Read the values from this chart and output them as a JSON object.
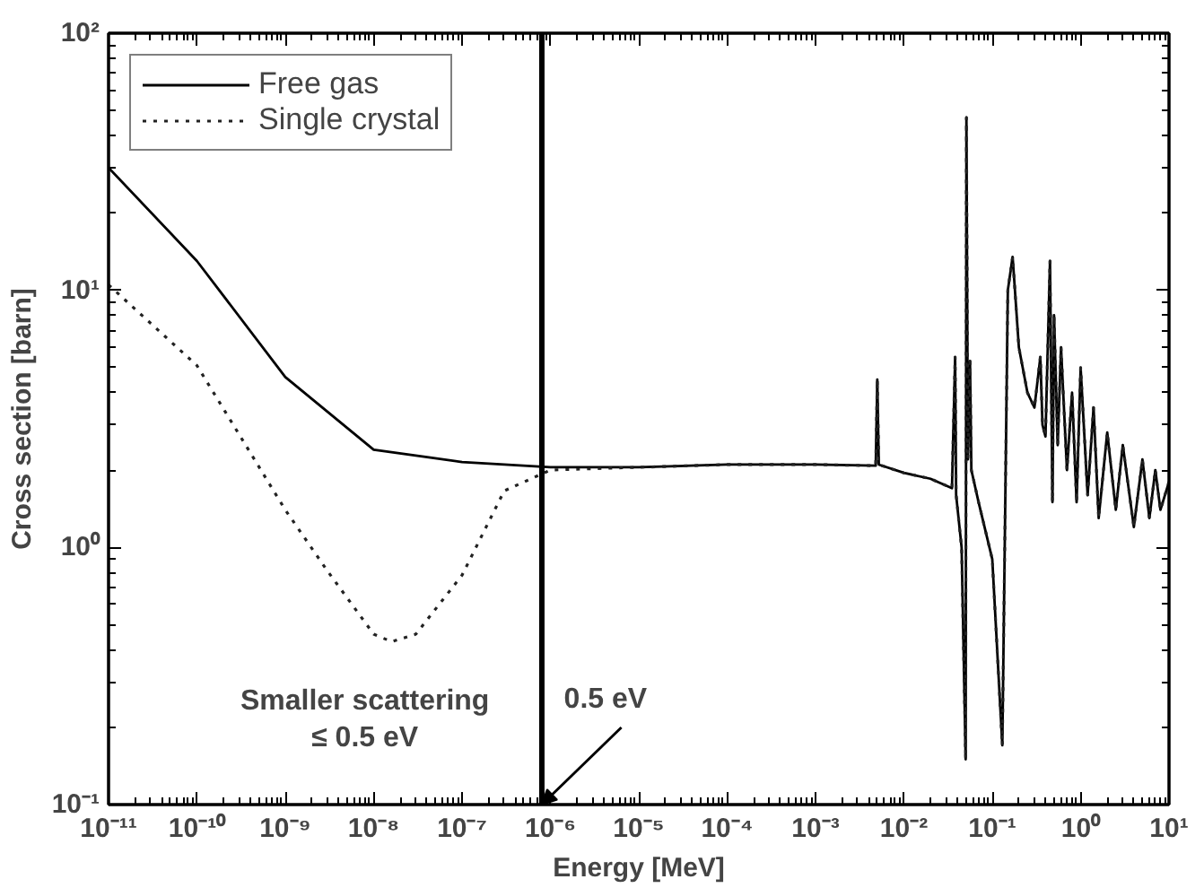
{
  "chart_data": {
    "type": "line",
    "xlabel": "Energy [MeV]",
    "ylabel": "Cross section [barn]",
    "log": "xy",
    "legend": "top left",
    "grid": false,
    "xlim": [
      1e-11,
      10
    ],
    "ylim": [
      0.1,
      100
    ],
    "xticks": [
      {
        "value": 1e-11,
        "label": "10⁻¹¹"
      },
      {
        "value": 1e-10,
        "label": "10⁻¹⁰"
      },
      {
        "value": 1e-09,
        "label": "10⁻⁹"
      },
      {
        "value": 1e-08,
        "label": "10⁻⁸"
      },
      {
        "value": 1e-07,
        "label": "10⁻⁷"
      },
      {
        "value": 1e-06,
        "label": "10⁻⁶"
      },
      {
        "value": 1e-05,
        "label": "10⁻⁵"
      },
      {
        "value": 0.0001,
        "label": "10⁻⁴"
      },
      {
        "value": 0.001,
        "label": "10⁻³"
      },
      {
        "value": 0.01,
        "label": "10⁻²"
      },
      {
        "value": 0.1,
        "label": "10⁻¹"
      },
      {
        "value": 1,
        "label": "10⁰"
      },
      {
        "value": 10,
        "label": "10¹"
      }
    ],
    "yticks": [
      {
        "value": 0.1,
        "label": "10⁻¹"
      },
      {
        "value": 1,
        "label": "10⁰"
      },
      {
        "value": 10,
        "label": "10¹"
      },
      {
        "value": 100,
        "label": "10²"
      }
    ],
    "series": [
      {
        "name": "Free gas",
        "color": "#000000",
        "line_style": "solid",
        "x": [
          1e-11,
          1e-10,
          1e-09,
          1e-08,
          1e-07,
          1e-06,
          1e-05,
          0.0001,
          0.001,
          0.0048,
          0.005,
          0.0052,
          0.01,
          0.02,
          0.035,
          0.038,
          0.039,
          0.045,
          0.05,
          0.051,
          0.053,
          0.056,
          0.058,
          0.07,
          0.1,
          0.13,
          0.15,
          0.17,
          0.2,
          0.25,
          0.3,
          0.35,
          0.37,
          0.4,
          0.45,
          0.48,
          0.5,
          0.55,
          0.6,
          0.7,
          0.8,
          0.9,
          1,
          1.2,
          1.4,
          1.6,
          2,
          2.5,
          3,
          4,
          5,
          6,
          7,
          8,
          10
        ],
        "values": [
          30,
          13,
          4.6,
          2.4,
          2.15,
          2.05,
          2.05,
          2.1,
          2.1,
          2.08,
          4.5,
          2.1,
          1.95,
          1.85,
          1.7,
          5.5,
          1.6,
          1.0,
          0.15,
          47,
          2.2,
          5.3,
          2.0,
          1.5,
          0.9,
          0.17,
          10,
          13.5,
          6,
          4,
          3.5,
          5.5,
          3,
          2.7,
          13,
          1.5,
          8,
          2.5,
          6,
          2,
          4,
          1.5,
          5,
          1.6,
          3.5,
          1.3,
          2.8,
          1.4,
          2.5,
          1.2,
          2.2,
          1.3,
          2,
          1.4,
          1.8
        ]
      },
      {
        "name": "Single crystal",
        "color": "#222222",
        "line_style": "dotted",
        "x": [
          1e-11,
          1e-10,
          1e-09,
          3e-09,
          1e-08,
          1.6e-08,
          3e-08,
          1e-07,
          3e-07,
          1e-06,
          1e-05,
          0.0001,
          0.001,
          0.0048,
          0.005,
          0.0052,
          0.01,
          0.02,
          0.035,
          0.038,
          0.039,
          0.045,
          0.05,
          0.051,
          0.053,
          0.056,
          0.058,
          0.07,
          0.1,
          0.13,
          0.15,
          0.17,
          0.2,
          0.25,
          0.3,
          0.35,
          0.37,
          0.4,
          0.45,
          0.48,
          0.5,
          0.55,
          0.6,
          0.7,
          0.8,
          0.9,
          1,
          1.2,
          1.4,
          1.6,
          2,
          2.5,
          3,
          4,
          5,
          6,
          7,
          8,
          10
        ],
        "values": [
          10.5,
          5.1,
          1.4,
          0.81,
          0.46,
          0.43,
          0.46,
          0.78,
          1.66,
          2.0,
          2.05,
          2.1,
          2.1,
          2.08,
          4.5,
          2.1,
          1.95,
          1.85,
          1.7,
          5.5,
          1.6,
          1.0,
          0.15,
          47,
          2.2,
          5.3,
          2.0,
          1.5,
          0.9,
          0.17,
          10,
          13.5,
          6,
          4,
          3.5,
          5.5,
          3,
          2.7,
          13,
          1.5,
          8,
          2.5,
          6,
          2,
          4,
          1.5,
          5,
          1.6,
          3.5,
          1.3,
          2.8,
          1.4,
          2.5,
          1.2,
          2.2,
          1.3,
          2,
          1.4,
          1.8
        ]
      }
    ],
    "ref_lines": [
      {
        "axis": "x",
        "value": 8e-07,
        "label": "0.5 eV",
        "color": "#000000",
        "line_style": "solid"
      }
    ],
    "annotations": [
      "Smaller scattering\n≤ 0.5 eV"
    ]
  }
}
